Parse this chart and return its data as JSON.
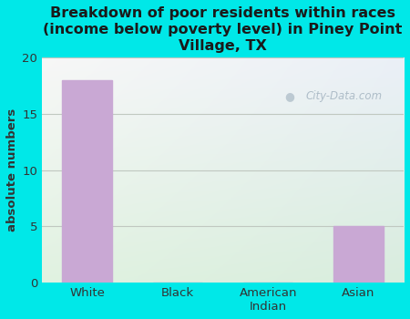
{
  "title": "Breakdown of poor residents within races\n(income below poverty level) in Piney Point\nVillage, TX",
  "categories": [
    "White",
    "Black",
    "American\nIndian",
    "Asian"
  ],
  "values": [
    18,
    0,
    0,
    5
  ],
  "bar_color": "#c9a8d4",
  "ylabel": "absolute numbers",
  "ylim": [
    0,
    20
  ],
  "yticks": [
    0,
    5,
    10,
    15,
    20
  ],
  "background_color": "#00e8e8",
  "plot_bg_topleft": "#f8f8f8",
  "plot_bg_topright": "#e8f0f8",
  "plot_bg_bottomleft": "#e0f0e0",
  "plot_bg_bottomright": "#d8ece0",
  "grid_color": "#c0c8c0",
  "title_color": "#1a1a1a",
  "title_fontsize": 11.5,
  "axis_label_color": "#333333",
  "watermark_text": "City-Data.com",
  "watermark_color": "#a8b8c4"
}
